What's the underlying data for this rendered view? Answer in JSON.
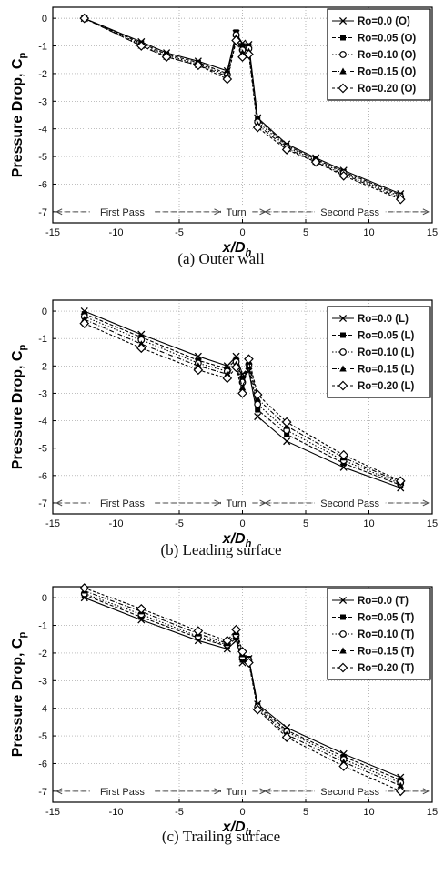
{
  "xlabel": "x/D",
  "xlabel_sub": "h",
  "ylabel": "Pressure Drop, C",
  "ylabel_sub": "p",
  "zones": [
    "First Pass",
    "Turn",
    "Second Pass"
  ],
  "xticks": [
    -15,
    -10,
    -5,
    0,
    5,
    10,
    15
  ],
  "yticks": [
    0,
    -1,
    -2,
    -3,
    -4,
    -5,
    -6,
    -7
  ],
  "chart_data": [
    {
      "type": "line",
      "caption": "(a)  Outer wall",
      "xlabel": "x/Dh",
      "ylabel": "Pressure Drop, Cp",
      "xlim": [
        -15,
        15
      ],
      "ylim": [
        -7.4,
        0.4
      ],
      "grid": true,
      "legend_position": "top-right",
      "series": [
        {
          "name": "Ro=0.0  (O)",
          "marker": "x",
          "x": [
            -12.5,
            -8,
            -6,
            -3.5,
            -1.2,
            -0.5,
            0,
            0.5,
            1.2,
            3.5,
            5.8,
            8,
            12.5
          ],
          "y": [
            0,
            -0.85,
            -1.25,
            -1.55,
            -1.9,
            -0.55,
            -0.9,
            -0.95,
            -3.6,
            -4.55,
            -5.05,
            -5.5,
            -6.35
          ]
        },
        {
          "name": "Ro=0.05 (O)",
          "marker": "square-filled",
          "x": [
            -12.5,
            -8,
            -6,
            -3.5,
            -1.2,
            -0.5,
            0,
            0.5,
            1.2,
            3.5,
            5.8,
            8,
            12.5
          ],
          "y": [
            0,
            -0.9,
            -1.3,
            -1.6,
            -2.0,
            -0.5,
            -1.0,
            -1.0,
            -3.65,
            -4.6,
            -5.1,
            -5.55,
            -6.4
          ]
        },
        {
          "name": "Ro=0.10 (O)",
          "marker": "circle",
          "x": [
            -12.5,
            -8,
            -6,
            -3.5,
            -1.2,
            -0.5,
            0,
            0.5,
            1.2,
            3.5,
            5.8,
            8,
            12.5
          ],
          "y": [
            0,
            -0.95,
            -1.35,
            -1.65,
            -2.05,
            -0.6,
            -1.15,
            -1.1,
            -3.75,
            -4.65,
            -5.15,
            -5.6,
            -6.45
          ]
        },
        {
          "name": "Ro=0.15 (O)",
          "marker": "triangle-filled",
          "x": [
            -12.5,
            -8,
            -6,
            -3.5,
            -1.2,
            -0.5,
            0,
            0.5,
            1.2,
            3.5,
            5.8,
            8,
            12.5
          ],
          "y": [
            0,
            -1.0,
            -1.4,
            -1.7,
            -2.1,
            -0.7,
            -1.25,
            -1.2,
            -3.85,
            -4.7,
            -5.2,
            -5.65,
            -6.5
          ]
        },
        {
          "name": "Ro=0.20 (O)",
          "marker": "diamond",
          "x": [
            -12.5,
            -8,
            -6,
            -3.5,
            -1.2,
            -0.5,
            0,
            0.5,
            1.2,
            3.5,
            5.8,
            8,
            12.5
          ],
          "y": [
            0,
            -1.0,
            -1.4,
            -1.7,
            -2.2,
            -0.8,
            -1.4,
            -1.3,
            -3.95,
            -4.75,
            -5.2,
            -5.7,
            -6.55
          ]
        }
      ]
    },
    {
      "type": "line",
      "caption": "(b)  Leading surface",
      "xlabel": "x/Dh",
      "ylabel": "Pressure Drop, Cp",
      "xlim": [
        -15,
        15
      ],
      "ylim": [
        -7.4,
        0.4
      ],
      "grid": true,
      "legend_position": "top-right",
      "series": [
        {
          "name": "Ro=0.0  (L)",
          "marker": "x",
          "x": [
            -12.5,
            -8,
            -3.5,
            -1.2,
            -0.5,
            0,
            0.5,
            1.2,
            3.5,
            8,
            12.5
          ],
          "y": [
            0,
            -0.85,
            -1.65,
            -2.0,
            -1.65,
            -2.3,
            -2.2,
            -3.85,
            -4.75,
            -5.7,
            -6.45
          ]
        },
        {
          "name": "Ro=0.05 (L)",
          "marker": "square-filled",
          "x": [
            -12.5,
            -8,
            -3.5,
            -1.2,
            -0.5,
            0,
            0.5,
            1.2,
            3.5,
            8,
            12.5
          ],
          "y": [
            -0.1,
            -0.95,
            -1.8,
            -2.1,
            -1.75,
            -2.45,
            -2.05,
            -3.6,
            -4.5,
            -5.55,
            -6.35
          ]
        },
        {
          "name": "Ro=0.10 (L)",
          "marker": "circle",
          "x": [
            -12.5,
            -8,
            -3.5,
            -1.2,
            -0.5,
            0,
            0.5,
            1.2,
            3.5,
            8,
            12.5
          ],
          "y": [
            -0.2,
            -1.05,
            -1.9,
            -2.2,
            -1.85,
            -2.6,
            -1.95,
            -3.4,
            -4.35,
            -5.45,
            -6.3
          ]
        },
        {
          "name": "Ro=0.15 (L)",
          "marker": "triangle-filled",
          "x": [
            -12.5,
            -8,
            -3.5,
            -1.2,
            -0.5,
            0,
            0.5,
            1.2,
            3.5,
            8,
            12.5
          ],
          "y": [
            -0.3,
            -1.2,
            -2.0,
            -2.3,
            -1.95,
            -2.8,
            -1.85,
            -3.2,
            -4.2,
            -5.35,
            -6.25
          ]
        },
        {
          "name": "Ro=0.20 (L)",
          "marker": "diamond",
          "x": [
            -12.5,
            -8,
            -3.5,
            -1.2,
            -0.5,
            0,
            0.5,
            1.2,
            3.5,
            8,
            12.5
          ],
          "y": [
            -0.45,
            -1.35,
            -2.15,
            -2.45,
            -2.05,
            -3.0,
            -1.75,
            -3.05,
            -4.05,
            -5.25,
            -6.2
          ]
        }
      ]
    },
    {
      "type": "line",
      "caption": "(c)  Trailing surface",
      "xlabel": "x/Dh",
      "ylabel": "Pressure Drop, Cp",
      "xlim": [
        -15,
        15
      ],
      "ylim": [
        -7.4,
        0.4
      ],
      "grid": true,
      "legend_position": "top-right",
      "series": [
        {
          "name": "Ro=0.0  (T)",
          "marker": "x",
          "x": [
            -12.5,
            -8,
            -3.5,
            -1.2,
            -0.5,
            0,
            0.5,
            1.2,
            3.5,
            8,
            12.5
          ],
          "y": [
            0,
            -0.8,
            -1.55,
            -1.85,
            -1.55,
            -2.35,
            -2.2,
            -3.85,
            -4.7,
            -5.65,
            -6.5
          ]
        },
        {
          "name": "Ro=0.05 (T)",
          "marker": "square-filled",
          "x": [
            -12.5,
            -8,
            -3.5,
            -1.2,
            -0.5,
            0,
            0.5,
            1.2,
            3.5,
            8,
            12.5
          ],
          "y": [
            0.1,
            -0.7,
            -1.45,
            -1.75,
            -1.45,
            -2.25,
            -2.2,
            -3.9,
            -4.8,
            -5.75,
            -6.6
          ]
        },
        {
          "name": "Ro=0.10 (T)",
          "marker": "circle",
          "x": [
            -12.5,
            -8,
            -3.5,
            -1.2,
            -0.5,
            0,
            0.5,
            1.2,
            3.5,
            8,
            12.5
          ],
          "y": [
            0.15,
            -0.6,
            -1.4,
            -1.7,
            -1.35,
            -2.15,
            -2.25,
            -3.95,
            -4.85,
            -5.85,
            -6.7
          ]
        },
        {
          "name": "Ro=0.15 (T)",
          "marker": "triangle-filled",
          "x": [
            -12.5,
            -8,
            -3.5,
            -1.2,
            -0.5,
            0,
            0.5,
            1.2,
            3.5,
            8,
            12.5
          ],
          "y": [
            0.25,
            -0.5,
            -1.3,
            -1.65,
            -1.25,
            -2.05,
            -2.3,
            -4.0,
            -4.95,
            -5.95,
            -6.8
          ]
        },
        {
          "name": "Ro=0.20 (T)",
          "marker": "diamond",
          "x": [
            -12.5,
            -8,
            -3.5,
            -1.2,
            -0.5,
            0,
            0.5,
            1.2,
            3.5,
            8,
            12.5
          ],
          "y": [
            0.35,
            -0.4,
            -1.2,
            -1.55,
            -1.15,
            -1.95,
            -2.35,
            -4.05,
            -5.05,
            -6.1,
            -7.0
          ]
        }
      ]
    }
  ]
}
